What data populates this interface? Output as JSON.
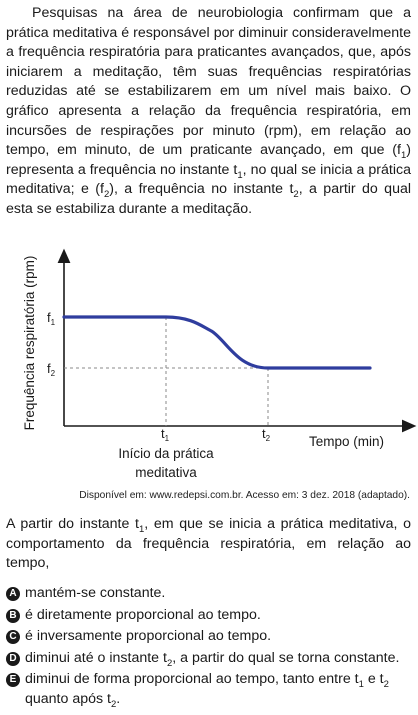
{
  "intro": {
    "p1": "Pesquisas na área de neurobiologia confirmam que a prática meditativa é responsável por diminuir consideravelmente a frequência respiratória para praticantes avançados, que, após iniciarem a meditação, têm suas frequências respiratórias reduzidas até se estabilizarem em um nível mais baixo. O gráfico apresenta a relação da frequência respiratória, em incursões de respirações por minuto (rpm), em relação ao tempo, em minuto, de um praticante avançado, em que (f",
    "f1_sub": "1",
    "p2": ") representa a frequência no instante t",
    "t1_sub": "1",
    "p3": ", no qual se inicia a prática meditativa; e (f",
    "f2_sub": "2",
    "p4": "), a frequência no instante t",
    "t2_sub": "2",
    "p5": ", a partir do qual esta se estabiliza durante a meditação."
  },
  "chart_data": {
    "type": "line",
    "ylabel": "Frequência respiratória (rpm)",
    "xlabel": "Tempo (min)",
    "y_ticks": [
      "f",
      "f"
    ],
    "y_tick_subs": [
      "1",
      "2"
    ],
    "x_ticks": [
      "t",
      "t"
    ],
    "x_tick_subs": [
      "1",
      "2"
    ],
    "annotation_line1": "Início da prática",
    "annotation_line2": "meditativa",
    "series": [
      {
        "points": [
          [
            0,
            1
          ],
          [
            1,
            1
          ],
          [
            1.45,
            0.72
          ],
          [
            2,
            0
          ],
          [
            3,
            0
          ]
        ]
      }
    ],
    "line_color": "#2f3d9e"
  },
  "source": "Disponível em: www.redepsi.com.br. Acesso em: 3 dez. 2018 (adaptado).",
  "stem": {
    "a": "A partir do instante t",
    "sub": "1",
    "b": ", em que se inicia a prática meditativa, o comportamento da frequência respiratória, em relação ao tempo,"
  },
  "options": {
    "a": {
      "letter": "A",
      "text": "mantém-se constante."
    },
    "b": {
      "letter": "B",
      "text": "é diretamente proporcional ao tempo."
    },
    "c": {
      "letter": "C",
      "text": "é inversamente proporcional ao tempo."
    },
    "d": {
      "letter": "D",
      "t1": "diminui até o instante t",
      "sub": "2",
      "t2": ", a partir do qual se torna constante."
    },
    "e": {
      "letter": "E",
      "t1": "diminui de forma proporcional ao tempo, tanto entre t",
      "sub1": "1",
      "t2": " e t",
      "sub2": "2",
      "t3": " quanto após t",
      "sub3": "2",
      "t4": "."
    }
  }
}
